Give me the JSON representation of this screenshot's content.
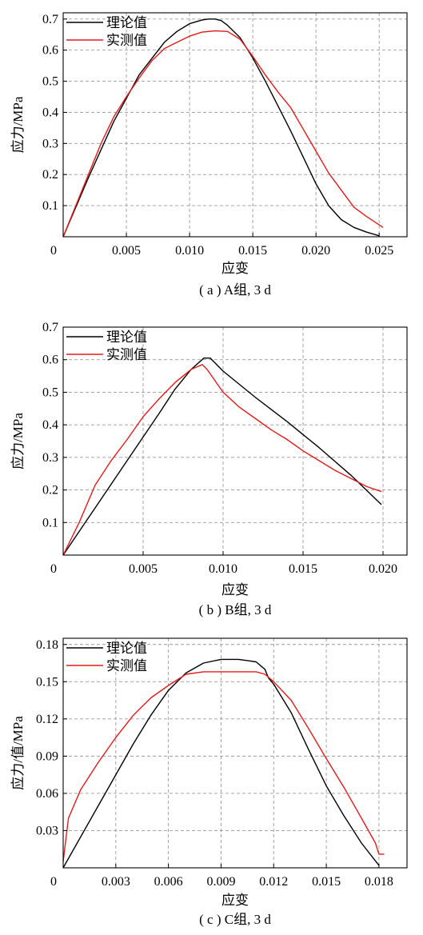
{
  "chart_data": [
    {
      "type": "line",
      "caption": "( a ) A组, 3 d",
      "xlabel": "应变",
      "ylabel": "应力/MPa",
      "xlim": [
        0,
        0.0272
      ],
      "ylim": [
        0,
        0.72
      ],
      "xticks": [
        0,
        0.005,
        0.01,
        0.015,
        0.02,
        0.025
      ],
      "xtick_labels": [
        "0",
        "0.005",
        "0.010",
        "0.015",
        "0.020",
        "0.025"
      ],
      "yticks": [
        0.1,
        0.2,
        0.3,
        0.4,
        0.5,
        0.6,
        0.7
      ],
      "ytick_labels": [
        "0.1",
        "0.2",
        "0.3",
        "0.4",
        "0.5",
        "0.6",
        "0.7"
      ],
      "grid": true,
      "legend": "top-left",
      "series": [
        {
          "name": "理论值",
          "color": "#000000",
          "x": [
            0,
            0.002,
            0.004,
            0.006,
            0.008,
            0.009,
            0.01,
            0.011,
            0.0115,
            0.012,
            0.0125,
            0.013,
            0.014,
            0.015,
            0.016,
            0.017,
            0.018,
            0.019,
            0.02,
            0.021,
            0.022,
            0.023,
            0.024,
            0.025
          ],
          "y": [
            0,
            0.19,
            0.37,
            0.52,
            0.625,
            0.66,
            0.685,
            0.697,
            0.7,
            0.7,
            0.695,
            0.68,
            0.64,
            0.575,
            0.5,
            0.42,
            0.34,
            0.255,
            0.17,
            0.1,
            0.055,
            0.03,
            0.015,
            0.003
          ]
        },
        {
          "name": "实测值",
          "color": "#e31a1c",
          "x": [
            0,
            0.002,
            0.003,
            0.004,
            0.005,
            0.006,
            0.007,
            0.008,
            0.009,
            0.01,
            0.011,
            0.012,
            0.013,
            0.014,
            0.015,
            0.016,
            0.017,
            0.018,
            0.019,
            0.02,
            0.021,
            0.022,
            0.023,
            0.024,
            0.0253
          ],
          "y": [
            0,
            0.2,
            0.3,
            0.385,
            0.45,
            0.51,
            0.565,
            0.605,
            0.625,
            0.645,
            0.658,
            0.662,
            0.66,
            0.635,
            0.58,
            0.52,
            0.465,
            0.415,
            0.345,
            0.275,
            0.205,
            0.15,
            0.095,
            0.065,
            0.03
          ]
        }
      ]
    },
    {
      "type": "line",
      "caption": "( b ) B组, 3 d",
      "xlabel": "应变",
      "ylabel": "应力/MPa",
      "xlim": [
        0,
        0.0215
      ],
      "ylim": [
        0,
        0.7
      ],
      "xticks": [
        0,
        0.005,
        0.01,
        0.015,
        0.02
      ],
      "xtick_labels": [
        "0",
        "0.005",
        "0.010",
        "0.015",
        "0.020"
      ],
      "yticks": [
        0.1,
        0.2,
        0.3,
        0.4,
        0.5,
        0.6,
        0.7
      ],
      "ytick_labels": [
        "0.1",
        "0.2",
        "0.3",
        "0.4",
        "0.5",
        "0.6",
        "0.7"
      ],
      "grid": true,
      "legend": "top-left",
      "series": [
        {
          "name": "理论值",
          "color": "#000000",
          "x": [
            0,
            0.002,
            0.004,
            0.006,
            0.007,
            0.008,
            0.0088,
            0.0092,
            0.01,
            0.012,
            0.014,
            0.016,
            0.018,
            0.0199
          ],
          "y": [
            0,
            0.145,
            0.29,
            0.435,
            0.51,
            0.57,
            0.605,
            0.605,
            0.565,
            0.485,
            0.41,
            0.33,
            0.245,
            0.155
          ]
        },
        {
          "name": "实测值",
          "color": "#e31a1c",
          "x": [
            0,
            0.001,
            0.002,
            0.003,
            0.004,
            0.005,
            0.006,
            0.007,
            0.008,
            0.0087,
            0.009,
            0.01,
            0.011,
            0.012,
            0.013,
            0.014,
            0.015,
            0.016,
            0.017,
            0.018,
            0.019,
            0.0199
          ],
          "y": [
            0,
            0.1,
            0.215,
            0.29,
            0.355,
            0.425,
            0.48,
            0.53,
            0.57,
            0.585,
            0.57,
            0.5,
            0.455,
            0.42,
            0.385,
            0.355,
            0.32,
            0.29,
            0.26,
            0.235,
            0.21,
            0.195
          ]
        }
      ]
    },
    {
      "type": "line",
      "caption": "( c ) C组, 3 d",
      "xlabel": "应变",
      "ylabel": "应力/值/MPa",
      "xlim": [
        0,
        0.0196
      ],
      "ylim": [
        0,
        0.185
      ],
      "xticks": [
        0,
        0.003,
        0.006,
        0.009,
        0.012,
        0.015,
        0.018
      ],
      "xtick_labels": [
        "0",
        "0.003",
        "0.006",
        "0.009",
        "0.012",
        "0.015",
        "0.018"
      ],
      "yticks": [
        0.03,
        0.06,
        0.09,
        0.12,
        0.15,
        0.18
      ],
      "ytick_labels": [
        "0.03",
        "0.06",
        "0.09",
        "0.12",
        "0.15",
        "0.18"
      ],
      "grid": true,
      "legend": "top-left",
      "series": [
        {
          "name": "理论值",
          "color": "#000000",
          "x": [
            0,
            0.002,
            0.004,
            0.005,
            0.006,
            0.007,
            0.008,
            0.009,
            0.01,
            0.0105,
            0.011,
            0.0115,
            0.0117,
            0.012,
            0.013,
            0.014,
            0.015,
            0.016,
            0.017,
            0.018
          ],
          "y": [
            0,
            0.05,
            0.1,
            0.123,
            0.143,
            0.157,
            0.165,
            0.168,
            0.168,
            0.167,
            0.166,
            0.16,
            0.153,
            0.148,
            0.125,
            0.095,
            0.066,
            0.042,
            0.02,
            0.002
          ]
        },
        {
          "name": "实测值",
          "color": "#e31a1c",
          "x": [
            0,
            0.0003,
            0.001,
            0.002,
            0.003,
            0.004,
            0.005,
            0.006,
            0.007,
            0.008,
            0.009,
            0.01,
            0.011,
            0.0115,
            0.012,
            0.013,
            0.014,
            0.015,
            0.016,
            0.017,
            0.0178,
            0.018,
            0.0183
          ],
          "y": [
            0.005,
            0.04,
            0.063,
            0.085,
            0.105,
            0.123,
            0.137,
            0.147,
            0.156,
            0.158,
            0.158,
            0.158,
            0.158,
            0.156,
            0.15,
            0.135,
            0.112,
            0.088,
            0.065,
            0.04,
            0.02,
            0.011,
            0.011
          ]
        }
      ]
    }
  ]
}
